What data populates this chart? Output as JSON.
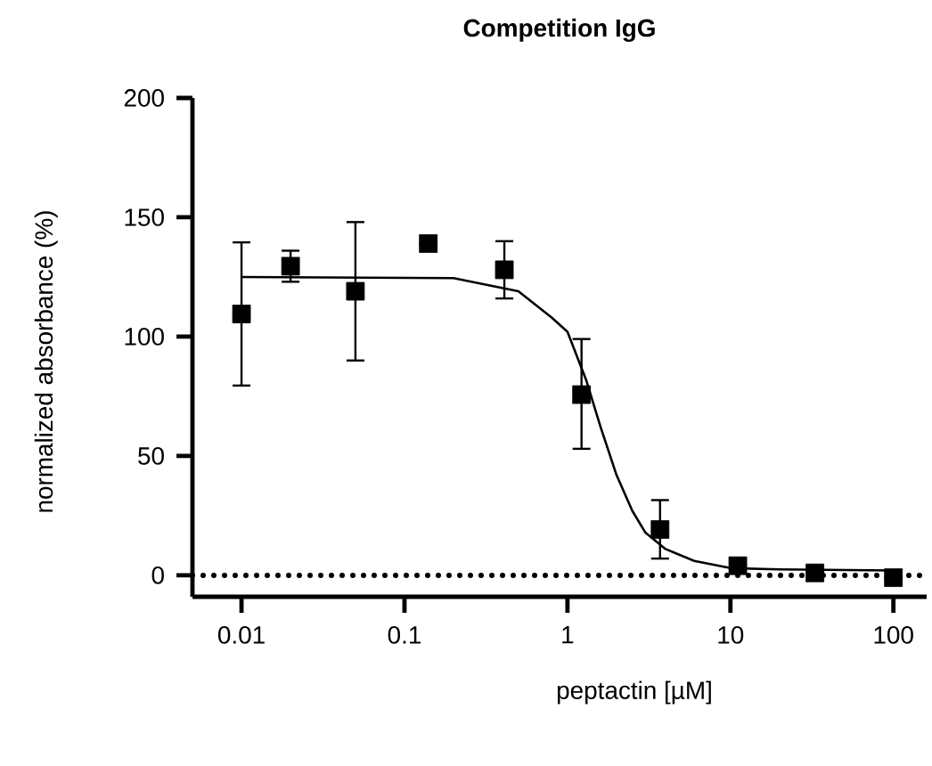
{
  "chart_data": {
    "type": "scatter",
    "title": "Competition IgG",
    "xlabel": "peptactin [µM]",
    "ylabel": "normalized absorbance (%)",
    "log": "x",
    "xlim": [
      0.005,
      160
    ],
    "ylim": [
      -9,
      200
    ],
    "xticks": [
      0.01,
      0.1,
      1,
      10,
      100
    ],
    "yticks": [
      0,
      50,
      100,
      150,
      200
    ],
    "marker": "square",
    "series": [
      {
        "color": "#000000",
        "x": [
          0.01,
          0.02,
          0.05,
          0.14,
          0.41,
          1.22,
          3.7,
          11.1,
          33,
          100
        ],
        "values": [
          109.5,
          129.5,
          119,
          139,
          128,
          75.7,
          19.2,
          4,
          1,
          -1
        ],
        "errors": [
          [
            79.5,
            139.5
          ],
          [
            123,
            136
          ],
          [
            90,
            148
          ],
          null,
          [
            116,
            140
          ],
          [
            53,
            99
          ],
          [
            7,
            31.5
          ],
          null,
          null,
          null
        ]
      },
      {
        "type": "line",
        "color": "#000000",
        "line_style": "solid",
        "marker": "none",
        "x": [
          0.01,
          0.2,
          0.5,
          0.8,
          1.0,
          1.3,
          1.6,
          2,
          2.5,
          3,
          4,
          6,
          10,
          20,
          100
        ],
        "values": [
          125,
          124.5,
          119,
          108,
          102,
          82,
          62,
          42,
          27,
          18,
          11,
          6,
          3,
          2.5,
          2
        ]
      }
    ],
    "ref_lines": [
      {
        "axis": "y",
        "value": 0,
        "line_style": "dotted",
        "color": "#000000"
      }
    ]
  }
}
